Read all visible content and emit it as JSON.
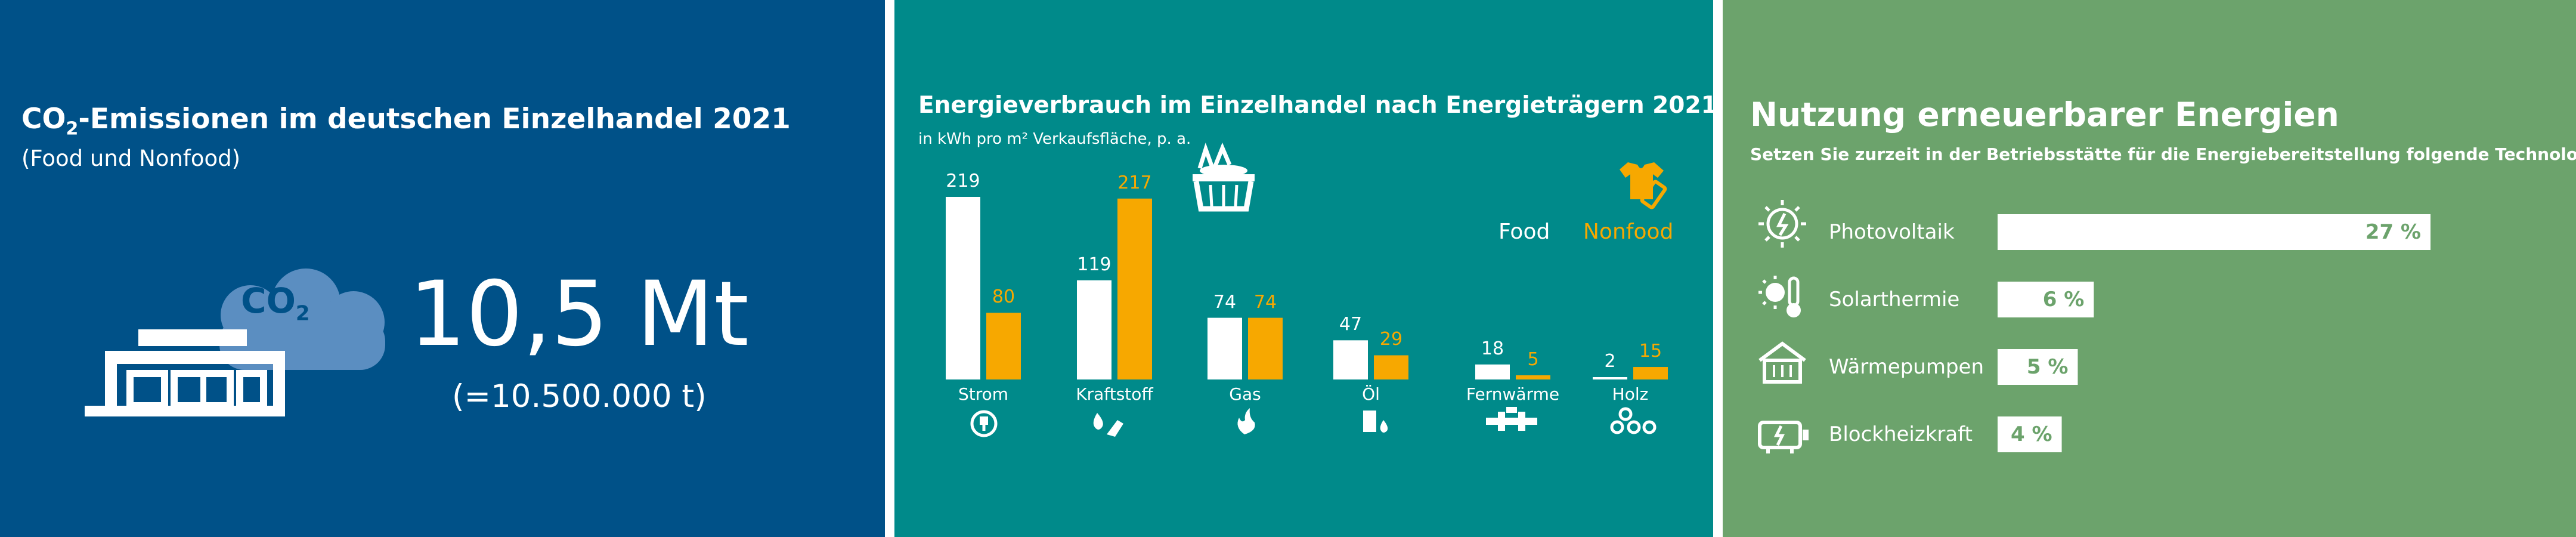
{
  "co2_panel": {
    "title_prefix": "CO",
    "title_sub": "2",
    "title_rest": "-Emissionen im deutschen Einzelhandel 2021",
    "subtitle": "(Food und Nonfood)",
    "cloud_label": "CO",
    "cloud_label_sub": "2",
    "value": "10,5 Mt",
    "value_detail": "(=10.500.000 t)",
    "color": "#005188"
  },
  "energy_panel": {
    "title": "Energieverbrauch im Einzelhandel nach Energieträgern 2021",
    "subtitle": "in kWh pro m² Verkaufsfläche, p. a.",
    "legend_food": "Food",
    "legend_nonfood": "Nonfood",
    "color": "#008a8a",
    "food_color": "#ffffff",
    "nonfood_color": "#f7a800"
  },
  "renewables_panel": {
    "title": "Nutzung erneuerbarer Energien",
    "subtitle": "Setzen Sie zurzeit in der Betriebsstätte für die Energiebereitstellung folgende Technologien ein?",
    "color": "#6ca36c"
  },
  "chart_data": [
    {
      "type": "bar",
      "title": "Energieverbrauch im Einzelhandel nach Energieträgern 2021",
      "ylabel": "in kWh pro m² Verkaufsfläche, p. a.",
      "categories": [
        "Strom",
        "Kraftstoff",
        "Gas",
        "Öl",
        "Fernwärme",
        "Holz"
      ],
      "series": [
        {
          "name": "Food",
          "values": [
            219,
            119,
            74,
            47,
            18,
            2
          ]
        },
        {
          "name": "Nonfood",
          "values": [
            80,
            217,
            74,
            29,
            5,
            15
          ]
        }
      ],
      "ylim": [
        0,
        219
      ],
      "grid": false,
      "legend": "top-right"
    },
    {
      "type": "bar",
      "orientation": "horizontal",
      "title": "Nutzung erneuerbarer Energien",
      "categories": [
        "Photovoltaik",
        "Solarthermie",
        "Wärmepumpen",
        "Blockheizkraft"
      ],
      "values": [
        27,
        6,
        5,
        4
      ],
      "value_labels": [
        "27 %",
        "6 %",
        "5 %",
        "4 %"
      ],
      "xlim": [
        0,
        27
      ]
    }
  ]
}
